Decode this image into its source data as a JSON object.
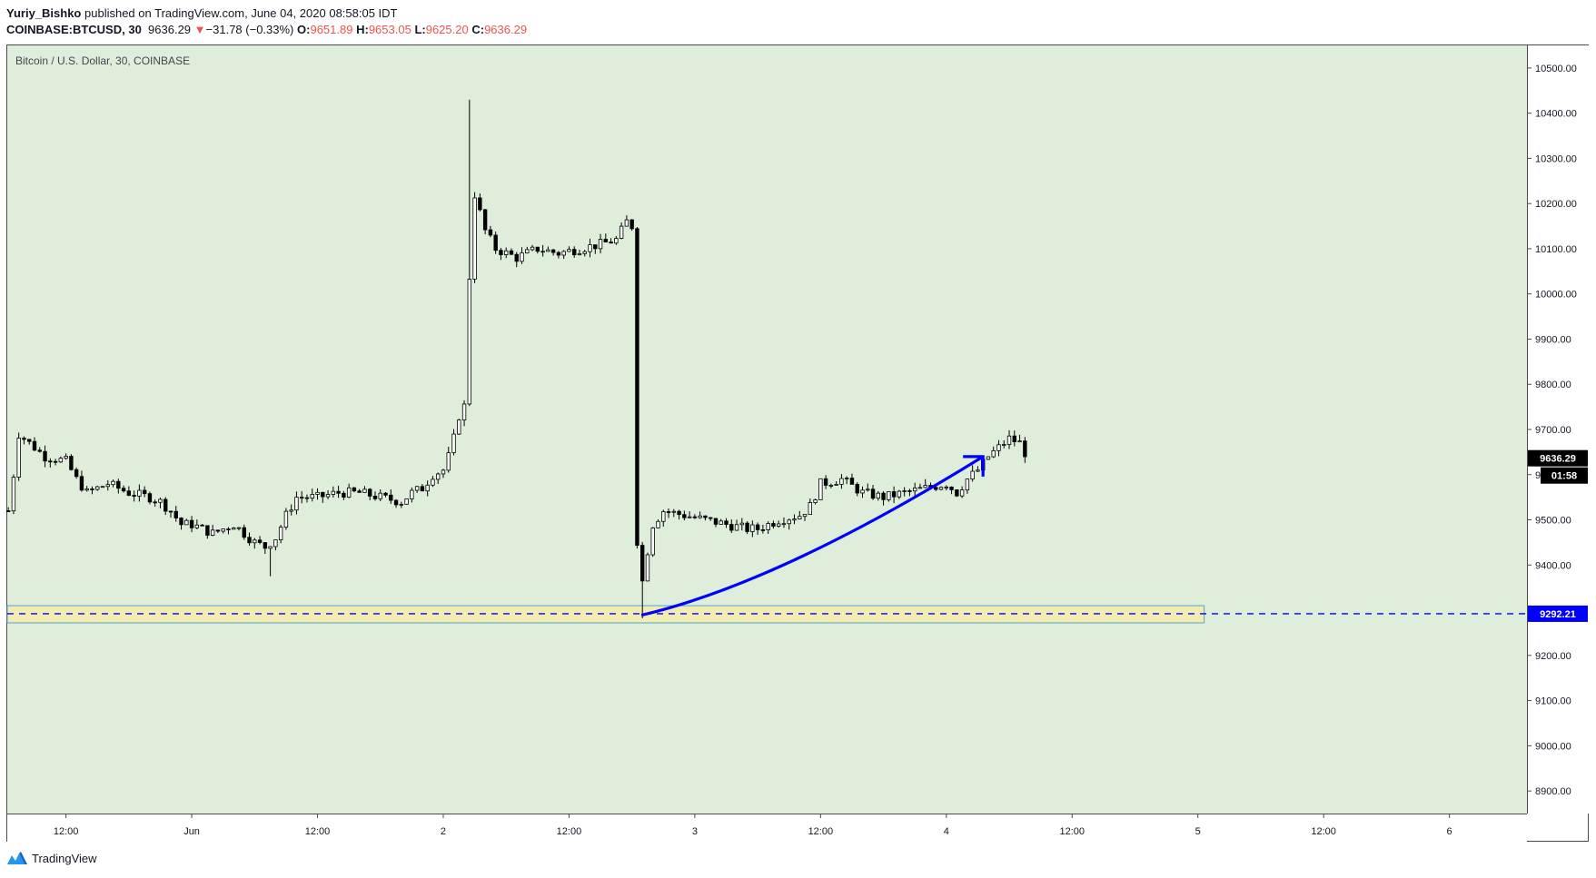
{
  "header": {
    "author": "Yuriy_Bishko",
    "published_text": "published on TradingView.com, June 04, 2020 08:58:05 IDT",
    "symbol": "COINBASE:BTCUSD, 30",
    "last_price": "9636.29",
    "change_arrow": "▼",
    "change": "−31.78 (−0.33%)",
    "o_label": "O:",
    "o_value": "9651.89",
    "h_label": "H:",
    "h_value": "9653.05",
    "l_label": "L:",
    "l_value": "9625.20",
    "c_label": "C:",
    "c_value": "9636.29"
  },
  "chart": {
    "symbol_description": "Bitcoin / U.S. Dollar, 30, COINBASE",
    "background_color": "#dfeedb",
    "price_label": "9636.29",
    "countdown_label": "01:58",
    "support_label": "9292.21",
    "support_price": 9292.21,
    "support_zone": [
      9272,
      9310
    ],
    "support_color": "#0000ff"
  },
  "footer": {
    "brand": "TradingView"
  },
  "chart_data": {
    "type": "candlestick",
    "title": "Bitcoin / U.S. Dollar, 30, COINBASE",
    "ylim": [
      8850,
      10550
    ],
    "y_ticks": [
      "10500.00",
      "10400.00",
      "10300.00",
      "10200.00",
      "10100.00",
      "10000.00",
      "9900.00",
      "9800.00",
      "9700.00",
      "9600.00",
      "9500.00",
      "9400.00",
      "9300.00",
      "9200.00",
      "9100.00",
      "9000.00",
      "8900.00"
    ],
    "y_tick_values": [
      10500,
      10400,
      10300,
      10200,
      10100,
      10000,
      9900,
      9800,
      9700,
      9600,
      9500,
      9400,
      9300,
      9200,
      9100,
      9000,
      8900
    ],
    "x_ticks": [
      {
        "label": "12:00",
        "hours": 12
      },
      {
        "label": "Jun",
        "hours": 24
      },
      {
        "label": "12:00",
        "hours": 36
      },
      {
        "label": "2",
        "hours": 48
      },
      {
        "label": "12:00",
        "hours": 60
      },
      {
        "label": "3",
        "hours": 72
      },
      {
        "label": "12:00",
        "hours": 84
      },
      {
        "label": "4",
        "hours": 96
      },
      {
        "label": "12:00",
        "hours": 108
      },
      {
        "label": "5",
        "hours": 120
      },
      {
        "label": "12:00",
        "hours": 132
      },
      {
        "label": "6",
        "hours": 144
      }
    ],
    "x_range_hours": [
      6.4,
      151.4
    ],
    "price_anchors": [
      [
        6.5,
        9520
      ],
      [
        7.0,
        9600
      ],
      [
        7.5,
        9690
      ],
      [
        8.5,
        9670
      ],
      [
        10,
        9640
      ],
      [
        12,
        9630
      ],
      [
        13,
        9590
      ],
      [
        14,
        9560
      ],
      [
        16,
        9580
      ],
      [
        18,
        9560
      ],
      [
        20,
        9550
      ],
      [
        21,
        9540
      ],
      [
        22,
        9520
      ],
      [
        23,
        9490
      ],
      [
        24,
        9490
      ],
      [
        25,
        9480
      ],
      [
        26,
        9470
      ],
      [
        27,
        9480
      ],
      [
        28,
        9490
      ],
      [
        29,
        9470
      ],
      [
        30,
        9450
      ],
      [
        31,
        9440
      ],
      [
        32,
        9460
      ],
      [
        33,
        9510
      ],
      [
        34,
        9550
      ],
      [
        36,
        9550
      ],
      [
        38,
        9560
      ],
      [
        40,
        9560
      ],
      [
        42,
        9550
      ],
      [
        44,
        9540
      ],
      [
        45,
        9560
      ],
      [
        46,
        9570
      ],
      [
        47,
        9600
      ],
      [
        48,
        9610
      ],
      [
        48.5,
        9640
      ],
      [
        49,
        9680
      ],
      [
        49.5,
        9730
      ],
      [
        50.2,
        9760
      ],
      [
        50.6,
        10130
      ],
      [
        51,
        10220
      ],
      [
        51.5,
        10180
      ],
      [
        52,
        10140
      ],
      [
        53,
        10100
      ],
      [
        55,
        10080
      ],
      [
        57,
        10100
      ],
      [
        59,
        10090
      ],
      [
        61,
        10100
      ],
      [
        63,
        10110
      ],
      [
        64.5,
        10120
      ],
      [
        65.5,
        10160
      ],
      [
        66,
        10150
      ],
      [
        66.3,
        9600
      ],
      [
        66.6,
        9380
      ],
      [
        66.9,
        9350
      ],
      [
        67.4,
        9420
      ],
      [
        68,
        9490
      ],
      [
        69,
        9520
      ],
      [
        71,
        9510
      ],
      [
        73,
        9500
      ],
      [
        75,
        9490
      ],
      [
        77,
        9480
      ],
      [
        78,
        9480
      ],
      [
        79,
        9490
      ],
      [
        80,
        9500
      ],
      [
        82,
        9510
      ],
      [
        83,
        9530
      ],
      [
        84,
        9580
      ],
      [
        86,
        9590
      ],
      [
        88,
        9560
      ],
      [
        90,
        9550
      ],
      [
        92,
        9560
      ],
      [
        94,
        9570
      ],
      [
        96,
        9580
      ],
      [
        97,
        9560
      ],
      [
        98,
        9590
      ],
      [
        99,
        9610
      ],
      [
        100,
        9640
      ],
      [
        101,
        9660
      ],
      [
        102,
        9680
      ],
      [
        103,
        9670
      ],
      [
        103.7,
        9640
      ]
    ]
  }
}
